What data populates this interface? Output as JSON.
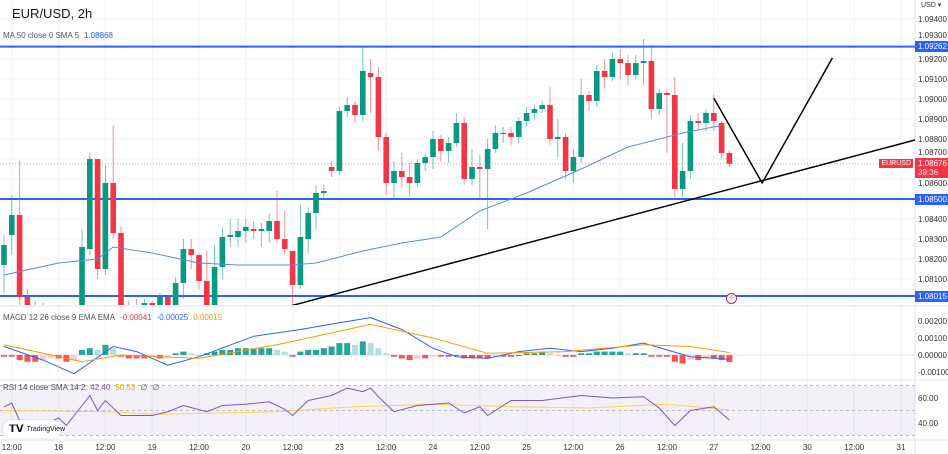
{
  "header": {
    "title": "EUR/USD, 2h",
    "currency": "USD ▾"
  },
  "ma_legend": {
    "label": "MA 50 close 0 SMA 5",
    "value": "1.08868"
  },
  "macd_legend": {
    "label": "MACD 12 26 close 9 EMA EMA",
    "histogram": "-0.00041",
    "macd": "-0.00025",
    "signal": "0.00015"
  },
  "rsi_legend": {
    "label": "RSI 14 close SMA 14 2",
    "rsi": "42.40",
    "sma": "50.53",
    "extra1": "∅",
    "extra2": "∅"
  },
  "branding": {
    "logo_text": "TradingView"
  },
  "colors": {
    "up": "#089981",
    "down": "#f23645",
    "ma": "#5b8af5",
    "level": "#2962ff",
    "macd": "#2962ff",
    "signal": "#ff9800",
    "rsi": "#7e57c2",
    "rsi_sma": "#f5d74a",
    "trend": "#000000"
  },
  "price_axis": {
    "ticks": [
      "1.09400",
      "1.09300",
      "1.09200",
      "1.09100",
      "1.09000",
      "1.08900",
      "1.08800",
      "1.08700",
      "1.08600",
      "1.08400",
      "1.08300",
      "1.08200",
      "1.08100"
    ],
    "levels": [
      "1.09262",
      "1.08500",
      "1.08015"
    ],
    "current": {
      "symbol": "EURUSD",
      "price": "1.08676",
      "countdown": "39:36"
    }
  },
  "macd_axis": {
    "ticks": [
      "0.00200",
      "0.00100",
      "0.00000",
      "-0.00100"
    ]
  },
  "rsi_axis": {
    "ticks": [
      "60.00",
      "40.00"
    ]
  },
  "time_axis": {
    "labels": [
      "12:00",
      "18",
      "12:00",
      "19",
      "12:00",
      "20",
      "12:00",
      "23",
      "12:00",
      "24",
      "12:00",
      "25",
      "12:00",
      "26",
      "12:00",
      "27",
      "12:00",
      "30",
      "12:00",
      "31"
    ]
  },
  "chart_data": {
    "type": "candlestick",
    "title": "EUR/USD, 2h",
    "ylim": [
      1.0793,
      1.0952
    ],
    "candles_ohlc": [
      [
        1.0817,
        1.0832,
        1.0803,
        1.0827
      ],
      [
        1.0832,
        1.0852,
        1.0822,
        1.0842
      ],
      [
        1.0842,
        1.0869,
        1.0795,
        1.0801
      ],
      [
        1.0801,
        1.0805,
        1.079,
        1.0795
      ],
      [
        1.0795,
        1.0799,
        1.079,
        1.0796
      ],
      [
        1.0796,
        1.0798,
        1.0791,
        1.0794
      ],
      [
        1.0794,
        1.0797,
        1.079,
        1.0795
      ],
      [
        1.0795,
        1.0797,
        1.0791,
        1.0793
      ],
      [
        1.0793,
        1.0796,
        1.079,
        1.0795
      ],
      [
        1.0795,
        1.0797,
        1.0791,
        1.0794
      ],
      [
        1.0794,
        1.0835,
        1.079,
        1.0826
      ],
      [
        1.0825,
        1.0873,
        1.0822,
        1.087
      ],
      [
        1.087,
        1.087,
        1.081,
        1.0815
      ],
      [
        1.0815,
        1.0867,
        1.0812,
        1.0858
      ],
      [
        1.0858,
        1.0887,
        1.083,
        1.0833
      ],
      [
        1.0833,
        1.0836,
        1.079,
        1.0795
      ],
      [
        1.0795,
        1.0799,
        1.079,
        1.0797
      ],
      [
        1.0797,
        1.08,
        1.0791,
        1.0795
      ],
      [
        1.0795,
        1.08,
        1.0792,
        1.0798
      ],
      [
        1.0798,
        1.0799,
        1.0791,
        1.0796
      ],
      [
        1.0796,
        1.0803,
        1.0793,
        1.0801
      ],
      [
        1.0801,
        1.0802,
        1.0794,
        1.0797
      ],
      [
        1.0797,
        1.0811,
        1.0794,
        1.0808
      ],
      [
        1.0808,
        1.083,
        1.08,
        1.0825
      ],
      [
        1.0825,
        1.083,
        1.0815,
        1.0822
      ],
      [
        1.0822,
        1.0823,
        1.0805,
        1.0809
      ],
      [
        1.0809,
        1.0824,
        1.0792,
        1.0795
      ],
      [
        1.0795,
        1.0827,
        1.0793,
        1.0816
      ],
      [
        1.0816,
        1.0836,
        1.081,
        1.0831
      ],
      [
        1.0831,
        1.084,
        1.0826,
        1.0832
      ],
      [
        1.0831,
        1.084,
        1.0826,
        1.0834
      ],
      [
        1.0834,
        1.084,
        1.0828,
        1.0836
      ],
      [
        1.0835,
        1.0839,
        1.083,
        1.0834
      ],
      [
        1.0834,
        1.0838,
        1.0826,
        1.0835
      ],
      [
        1.0834,
        1.0843,
        1.0828,
        1.0839
      ],
      [
        1.0839,
        1.0854,
        1.0828,
        1.083
      ],
      [
        1.083,
        1.0844,
        1.0822,
        1.0825
      ],
      [
        1.0824,
        1.0824,
        1.0797,
        1.0807
      ],
      [
        1.0807,
        1.0847,
        1.0805,
        1.0831
      ],
      [
        1.083,
        1.0846,
        1.0823,
        1.0843
      ],
      [
        1.0843,
        1.0857,
        1.0835,
        1.0853
      ],
      [
        1.0853,
        1.0857,
        1.085,
        1.0854
      ],
      [
        1.0866,
        1.0869,
        1.0861,
        1.0864
      ],
      [
        1.0864,
        1.0896,
        1.0862,
        1.0894
      ],
      [
        1.0894,
        1.0901,
        1.0891,
        1.0897
      ],
      [
        1.0897,
        1.0899,
        1.0888,
        1.0892
      ],
      [
        1.0892,
        1.0926,
        1.0889,
        1.0914
      ],
      [
        1.0913,
        1.092,
        1.0893,
        1.0911
      ],
      [
        1.0911,
        1.0916,
        1.0874,
        1.0881
      ],
      [
        1.0881,
        1.0883,
        1.0852,
        1.0858
      ],
      [
        1.0858,
        1.0869,
        1.085,
        1.0864
      ],
      [
        1.0864,
        1.0873,
        1.0856,
        1.0861
      ],
      [
        1.0861,
        1.0868,
        1.0851,
        1.0858
      ],
      [
        1.0858,
        1.087,
        1.0856,
        1.0868
      ],
      [
        1.0868,
        1.0873,
        1.0864,
        1.0871
      ],
      [
        1.0871,
        1.0884,
        1.0865,
        1.088
      ],
      [
        1.088,
        1.0882,
        1.0869,
        1.0874
      ],
      [
        1.0874,
        1.0881,
        1.0868,
        1.0878
      ],
      [
        1.0878,
        1.0893,
        1.0876,
        1.0888
      ],
      [
        1.0888,
        1.0891,
        1.0857,
        1.086
      ],
      [
        1.086,
        1.0875,
        1.0857,
        1.0866
      ],
      [
        1.0866,
        1.0872,
        1.085,
        1.0865
      ],
      [
        1.0865,
        1.088,
        1.0835,
        1.0875
      ],
      [
        1.0875,
        1.0887,
        1.0873,
        1.0883
      ],
      [
        1.0883,
        1.0886,
        1.0878,
        1.0883
      ],
      [
        1.0883,
        1.0886,
        1.0877,
        1.0881
      ],
      [
        1.0881,
        1.0891,
        1.0878,
        1.0889
      ],
      [
        1.0889,
        1.0896,
        1.0886,
        1.0893
      ],
      [
        1.0893,
        1.0897,
        1.089,
        1.0895
      ],
      [
        1.0895,
        1.0899,
        1.0893,
        1.0897
      ],
      [
        1.0897,
        1.0906,
        1.0877,
        1.088
      ],
      [
        1.088,
        1.089,
        1.0871,
        1.0881
      ],
      [
        1.0881,
        1.0883,
        1.086,
        1.0864
      ],
      [
        1.0864,
        1.0875,
        1.0858,
        1.0871
      ],
      [
        1.0871,
        1.091,
        1.0868,
        1.0902
      ],
      [
        1.0902,
        1.0904,
        1.0894,
        1.0899
      ],
      [
        1.0899,
        1.0917,
        1.0896,
        1.0914
      ],
      [
        1.0914,
        1.092,
        1.0905,
        1.0911
      ],
      [
        1.0911,
        1.0923,
        1.0909,
        1.092
      ],
      [
        1.092,
        1.0925,
        1.091,
        1.0918
      ],
      [
        1.0918,
        1.0922,
        1.0907,
        1.0912
      ],
      [
        1.0912,
        1.0922,
        1.091,
        1.0918
      ],
      [
        1.0918,
        1.093,
        1.0907,
        1.0919
      ],
      [
        1.0919,
        1.0927,
        1.089,
        1.0895
      ],
      [
        1.0895,
        1.0905,
        1.0892,
        1.0903
      ],
      [
        1.0903,
        1.0905,
        1.0873,
        1.0902
      ],
      [
        1.0902,
        1.0911,
        1.0851,
        1.0855
      ],
      [
        1.0855,
        1.0878,
        1.0851,
        1.0864
      ],
      [
        1.0864,
        1.0892,
        1.086,
        1.0889
      ],
      [
        1.0889,
        1.0893,
        1.0885,
        1.0888
      ],
      [
        1.0888,
        1.0895,
        1.0884,
        1.0893
      ],
      [
        1.0893,
        1.0902,
        1.0884,
        1.0889
      ],
      [
        1.0888,
        1.0889,
        1.087,
        1.0873
      ],
      [
        1.0873,
        1.0874,
        1.0866,
        1.08676
      ]
    ],
    "ma50": [
      [
        0,
        1.0812
      ],
      [
        7,
        1.0818
      ],
      [
        12,
        1.082
      ],
      [
        14,
        1.0826
      ],
      [
        19,
        1.0823
      ],
      [
        25,
        1.0818
      ],
      [
        30,
        1.0817
      ],
      [
        37,
        1.0817
      ],
      [
        40,
        1.0818
      ],
      [
        46,
        1.0824
      ],
      [
        51,
        1.0828
      ],
      [
        56,
        1.0831
      ],
      [
        61,
        1.0844
      ],
      [
        67,
        1.0853
      ],
      [
        74,
        1.0865
      ],
      [
        80,
        1.0876
      ],
      [
        87,
        1.0883
      ],
      [
        92,
        1.08868
      ]
    ],
    "horizontal_levels": [
      1.09262,
      1.085,
      1.08015
    ],
    "trendlines": [
      {
        "points": [
          [
            36.7,
            1.07965
          ],
          [
            116.8,
            1.08795
          ]
        ]
      },
      {
        "points": [
          [
            91.0,
            1.09005
          ],
          [
            97.2,
            1.0858
          ],
          [
            106.2,
            1.09205
          ]
        ]
      }
    ],
    "macd": {
      "ylim": [
        -0.0012,
        0.0029
      ],
      "histogram": [
        -0.0001,
        -0.0001,
        -0.0003,
        -0.0004,
        -0.0004,
        -0.0003,
        -0.0002,
        -0.0002,
        -0.0004,
        -0.0003,
        0.0003,
        0.0004,
        0.0003,
        0.0006,
        0.0004,
        -0.0001,
        -0.0002,
        -0.0002,
        -0.0002,
        -0.0001,
        -0.0002,
        -0.0001,
        0.0001,
        0.0002,
        0.0001,
        0.0,
        0.0001,
        0.0002,
        0.0003,
        0.0003,
        0.0004,
        0.0004,
        0.0004,
        0.0004,
        0.0004,
        0.0003,
        0.0002,
        -0.0001,
        0.0002,
        0.0003,
        0.0003,
        0.0004,
        0.0005,
        0.0007,
        0.0007,
        0.0006,
        0.0008,
        0.0007,
        0.0004,
        0.0001,
        -0.0001,
        -0.0002,
        -0.0003,
        -0.0002,
        -0.0002,
        -0.0001,
        -0.0001,
        -0.0001,
        0.0,
        -0.0002,
        -0.0002,
        -0.0002,
        -0.0002,
        -0.0001,
        -0.0001,
        -0.0001,
        0.0,
        0.0001,
        0.0001,
        0.0002,
        0.0001,
        0.0,
        -0.0001,
        -0.0001,
        0.0001,
        0.0001,
        0.0002,
        0.0002,
        0.0002,
        0.0002,
        0.0001,
        0.0001,
        0.0001,
        -0.0001,
        -0.0001,
        -0.0001,
        -0.0004,
        -0.0005,
        -0.0003,
        -0.0003,
        -0.0002,
        -0.0002,
        -0.0003,
        -0.00041
      ],
      "macd_line": [
        [
          0,
          0.0005
        ],
        [
          5,
          -0.0003
        ],
        [
          9,
          -0.0011
        ],
        [
          14,
          0.0005
        ],
        [
          17,
          0.0002
        ],
        [
          21,
          -0.0006
        ],
        [
          25,
          -0.0001
        ],
        [
          32,
          0.0011
        ],
        [
          38,
          0.0015
        ],
        [
          43,
          0.0019
        ],
        [
          47,
          0.0022
        ],
        [
          51,
          0.0015
        ],
        [
          55,
          0.0004
        ],
        [
          58,
          -0.0001
        ],
        [
          62,
          -0.0002
        ],
        [
          66,
          0.0002
        ],
        [
          70,
          0.0004
        ],
        [
          74,
          0.0002
        ],
        [
          78,
          0.0004
        ],
        [
          82,
          0.0007
        ],
        [
          85,
          0.0003
        ],
        [
          88,
          -0.0001
        ],
        [
          93,
          -0.00025
        ]
      ],
      "signal_line": [
        [
          0,
          0.0006
        ],
        [
          10,
          -0.0004
        ],
        [
          15,
          0.0
        ],
        [
          25,
          -0.0002
        ],
        [
          35,
          0.0006
        ],
        [
          47,
          0.0018
        ],
        [
          55,
          0.001
        ],
        [
          62,
          0.0001
        ],
        [
          72,
          0.0002
        ],
        [
          82,
          0.0006
        ],
        [
          88,
          0.0005
        ],
        [
          93,
          0.00015
        ]
      ]
    },
    "rsi": {
      "ylim": [
        25,
        75
      ],
      "bands": [
        70,
        50,
        30
      ],
      "rsi_line": [
        [
          0,
          52.8
        ],
        [
          1,
          56
        ],
        [
          2,
          42
        ],
        [
          4,
          42
        ],
        [
          6,
          41
        ],
        [
          7,
          44
        ],
        [
          8,
          38
        ],
        [
          10,
          54
        ],
        [
          11,
          62
        ],
        [
          12,
          50
        ],
        [
          13,
          58
        ],
        [
          15,
          46
        ],
        [
          19,
          46
        ],
        [
          21,
          49
        ],
        [
          23,
          54
        ],
        [
          26,
          49
        ],
        [
          28,
          54
        ],
        [
          31,
          55
        ],
        [
          34,
          57
        ],
        [
          36,
          51
        ],
        [
          37,
          46
        ],
        [
          39,
          58
        ],
        [
          42,
          62
        ],
        [
          44,
          68
        ],
        [
          46,
          65
        ],
        [
          47,
          68
        ],
        [
          48,
          61
        ],
        [
          50,
          49
        ],
        [
          53,
          54
        ],
        [
          57,
          56
        ],
        [
          59,
          48
        ],
        [
          61,
          53
        ],
        [
          62,
          46
        ],
        [
          65,
          58
        ],
        [
          69,
          58
        ],
        [
          74,
          62
        ],
        [
          78,
          60
        ],
        [
          82,
          61
        ],
        [
          84,
          52
        ],
        [
          86,
          38
        ],
        [
          88,
          50
        ],
        [
          91,
          53
        ],
        [
          93,
          42.4
        ]
      ],
      "sma_line": [
        [
          0,
          50
        ],
        [
          13,
          49
        ],
        [
          20,
          47
        ],
        [
          35,
          49
        ],
        [
          45,
          53
        ],
        [
          55,
          55
        ],
        [
          65,
          53
        ],
        [
          75,
          52
        ],
        [
          85,
          55
        ],
        [
          93,
          50.53
        ]
      ]
    }
  }
}
